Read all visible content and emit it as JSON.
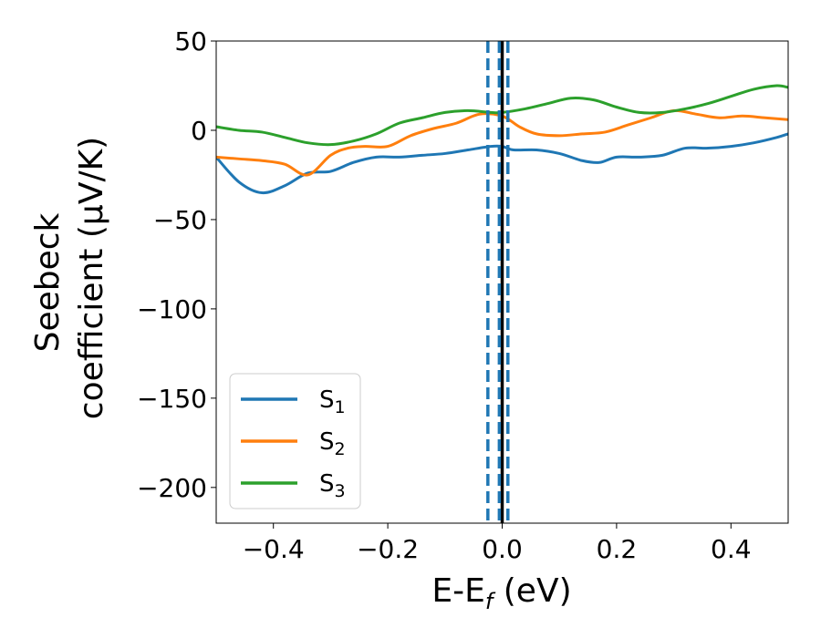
{
  "chart_data": {
    "type": "line",
    "xlabel_main": "E-E",
    "xlabel_sub": "f",
    "xlabel_unit": " (eV)",
    "ylabel_line1": "Seebeck",
    "ylabel_line2": "coefficient  (μV/K)",
    "xlim": [
      -0.5,
      0.5
    ],
    "ylim": [
      -220,
      50
    ],
    "xticks": [
      -0.4,
      -0.2,
      0.0,
      0.2,
      0.4
    ],
    "xtick_labels": [
      "−0.4",
      "−0.2",
      "0.0",
      "0.2",
      "0.4"
    ],
    "yticks": [
      50,
      0,
      -50,
      -100,
      -150,
      -200
    ],
    "ytick_labels": [
      "50",
      "0",
      "−50",
      "−100",
      "−150",
      "−200"
    ],
    "grid": false,
    "legend_position": "lower-left",
    "vlines": [
      {
        "x": 0.0,
        "style": "solid",
        "color": "#000000"
      },
      {
        "x": -0.025,
        "style": "dashed",
        "color": "#1f77b4"
      },
      {
        "x": -0.005,
        "style": "dashed",
        "color": "#1f77b4"
      },
      {
        "x": 0.01,
        "style": "dashed",
        "color": "#1f77b4"
      }
    ],
    "series": [
      {
        "name": "S",
        "subscript": "1",
        "color": "#1f77b4",
        "x": [
          -0.5,
          -0.46,
          -0.42,
          -0.38,
          -0.34,
          -0.3,
          -0.26,
          -0.22,
          -0.18,
          -0.14,
          -0.1,
          -0.06,
          -0.02,
          0.0,
          0.02,
          0.06,
          0.1,
          0.14,
          0.17,
          0.2,
          0.24,
          0.28,
          0.32,
          0.36,
          0.4,
          0.44,
          0.48,
          0.5
        ],
        "y": [
          -15,
          -29,
          -35,
          -31,
          -24,
          -23,
          -18,
          -15,
          -15,
          -14,
          -13,
          -11,
          -9,
          -9,
          -11,
          -11,
          -13,
          -17,
          -18,
          -15,
          -15,
          -14,
          -10,
          -10,
          -9,
          -7,
          -4,
          -2
        ]
      },
      {
        "name": "S",
        "subscript": "2",
        "color": "#ff7f0e",
        "x": [
          -0.5,
          -0.46,
          -0.42,
          -0.38,
          -0.34,
          -0.3,
          -0.27,
          -0.24,
          -0.2,
          -0.16,
          -0.12,
          -0.08,
          -0.04,
          0.0,
          0.03,
          0.06,
          0.1,
          0.14,
          0.18,
          0.22,
          0.26,
          0.3,
          0.34,
          0.38,
          0.42,
          0.46,
          0.5
        ],
        "y": [
          -15,
          -16,
          -17,
          -19,
          -25,
          -14,
          -10,
          -9,
          -9,
          -3,
          1,
          4,
          9,
          8,
          2,
          -2,
          -3,
          -2,
          -1,
          3,
          7,
          11,
          9,
          7,
          8,
          7,
          6
        ]
      },
      {
        "name": "S",
        "subscript": "3",
        "color": "#2ca02c",
        "x": [
          -0.5,
          -0.46,
          -0.42,
          -0.38,
          -0.34,
          -0.3,
          -0.26,
          -0.22,
          -0.18,
          -0.14,
          -0.1,
          -0.06,
          -0.02,
          0.0,
          0.04,
          0.08,
          0.12,
          0.16,
          0.2,
          0.24,
          0.28,
          0.32,
          0.36,
          0.4,
          0.44,
          0.48,
          0.5
        ],
        "y": [
          2,
          0,
          -1,
          -4,
          -7,
          -8,
          -6,
          -2,
          4,
          7,
          10,
          11,
          10,
          10,
          12,
          15,
          18,
          17,
          13,
          10,
          10,
          12,
          15,
          19,
          23,
          25,
          24
        ]
      }
    ]
  }
}
